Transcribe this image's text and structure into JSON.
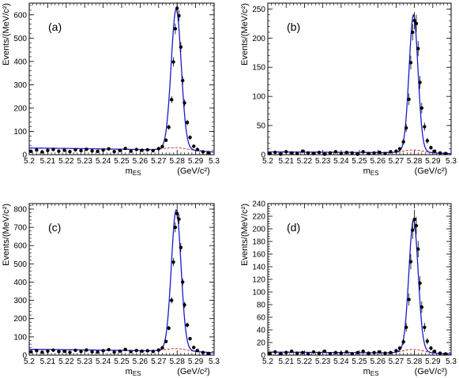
{
  "chart_data": [
    {
      "type": "scatter",
      "tag": "(a)",
      "ylabel": "Events/(MeV/c²)",
      "xlabel_var": "m",
      "xlabel_sub": "ES",
      "xunit": "(GeV/c²)",
      "xlim": [
        5.2,
        5.3
      ],
      "ylim": [
        0,
        650
      ],
      "yticks": [
        0,
        100,
        200,
        300,
        400,
        500,
        600
      ],
      "xticks": [
        5.2,
        5.21,
        5.22,
        5.23,
        5.24,
        5.25,
        5.26,
        5.27,
        5.28,
        5.29,
        5.3
      ],
      "xtick_labels": [
        "5.2",
        "5.21",
        "5.22",
        "5.23",
        "5.24",
        "5.25",
        "5.26",
        "5.27",
        "5.28",
        "5.29",
        "5.3"
      ],
      "model": {
        "peak_mean": 5.2795,
        "peak_sigma": 0.0027,
        "peak_amplitude": 595,
        "background_level": 18,
        "background_peak_amplitude": 12
      },
      "series": [
        {
          "style": "points",
          "x": [
            5.201,
            5.204,
            5.207,
            5.21,
            5.213,
            5.216,
            5.219,
            5.222,
            5.225,
            5.228,
            5.231,
            5.234,
            5.237,
            5.24,
            5.243,
            5.246,
            5.249,
            5.252,
            5.255,
            5.258,
            5.261,
            5.264,
            5.267,
            5.27,
            5.272,
            5.274,
            5.2755,
            5.277,
            5.278,
            5.279,
            5.28,
            5.281,
            5.282,
            5.283,
            5.284,
            5.2855,
            5.287,
            5.289,
            5.291,
            5.294,
            5.297
          ],
          "y": [
            14,
            20,
            12,
            18,
            22,
            15,
            19,
            13,
            21,
            17,
            23,
            16,
            14,
            20,
            25,
            13,
            18,
            27,
            15,
            22,
            19,
            21,
            17,
            26,
            35,
            62,
            118,
            236,
            398,
            540,
            628,
            596,
            462,
            318,
            222,
            138,
            74,
            36,
            22,
            12,
            8
          ],
          "yerr": [
            4,
            5,
            4,
            4,
            5,
            4,
            4,
            4,
            5,
            4,
            5,
            4,
            4,
            5,
            5,
            4,
            4,
            5,
            4,
            5,
            4,
            5,
            4,
            5,
            6,
            8,
            11,
            15,
            20,
            23,
            25,
            24,
            21,
            18,
            15,
            12,
            9,
            6,
            5,
            4,
            3
          ]
        }
      ]
    },
    {
      "type": "scatter",
      "tag": "(b)",
      "ylabel": "Events/(MeV/c²)",
      "xlabel_var": "m",
      "xlabel_sub": "ES",
      "xunit": "(GeV/c²)",
      "xlim": [
        5.2,
        5.3
      ],
      "ylim": [
        0,
        260
      ],
      "yticks": [
        0,
        50,
        100,
        150,
        200,
        250
      ],
      "xticks": [
        5.2,
        5.21,
        5.22,
        5.23,
        5.24,
        5.25,
        5.26,
        5.27,
        5.28,
        5.29,
        5.3
      ],
      "xtick_labels": [
        "5.2",
        "5.21",
        "5.22",
        "5.23",
        "5.24",
        "5.25",
        "5.26",
        "5.27",
        "5.28",
        "5.29",
        "5.3"
      ],
      "model": {
        "peak_mean": 5.2795,
        "peak_sigma": 0.0024,
        "peak_amplitude": 232,
        "background_level": 3,
        "background_peak_amplitude": 5
      },
      "series": [
        {
          "style": "points",
          "x": [
            5.201,
            5.204,
            5.207,
            5.21,
            5.213,
            5.216,
            5.219,
            5.222,
            5.225,
            5.228,
            5.231,
            5.234,
            5.237,
            5.24,
            5.243,
            5.246,
            5.249,
            5.252,
            5.255,
            5.258,
            5.261,
            5.264,
            5.267,
            5.27,
            5.272,
            5.274,
            5.2755,
            5.277,
            5.278,
            5.279,
            5.28,
            5.281,
            5.282,
            5.283,
            5.284,
            5.2855,
            5.287,
            5.289,
            5.291,
            5.294,
            5.297
          ],
          "y": [
            2,
            4,
            1,
            5,
            3,
            2,
            6,
            3,
            2,
            4,
            1,
            3,
            5,
            2,
            4,
            3,
            1,
            5,
            2,
            3,
            4,
            2,
            5,
            6,
            10,
            22,
            46,
            95,
            158,
            210,
            230,
            225,
            182,
            124,
            80,
            48,
            24,
            12,
            6,
            3,
            2
          ],
          "yerr": [
            1.5,
            2,
            1,
            2,
            2,
            1.5,
            2.5,
            2,
            1.5,
            2,
            1,
            2,
            2,
            1.5,
            2,
            2,
            1,
            2,
            1.5,
            2,
            2,
            1.5,
            2,
            2.5,
            3,
            5,
            7,
            10,
            12,
            14,
            15,
            15,
            13,
            11,
            9,
            7,
            5,
            3.5,
            2.5,
            2,
            1.5
          ]
        }
      ]
    },
    {
      "type": "scatter",
      "tag": "(c)",
      "ylabel": "Events/(MeV/c²)",
      "xlabel_var": "m",
      "xlabel_sub": "ES",
      "xunit": "(GeV/c²)",
      "xlim": [
        5.2,
        5.3
      ],
      "ylim": [
        0,
        830
      ],
      "yticks": [
        0,
        100,
        200,
        300,
        400,
        500,
        600,
        700,
        800
      ],
      "xticks": [
        5.2,
        5.21,
        5.22,
        5.23,
        5.24,
        5.25,
        5.26,
        5.27,
        5.28,
        5.29,
        5.3
      ],
      "xtick_labels": [
        "5.2",
        "5.21",
        "5.22",
        "5.23",
        "5.24",
        "5.25",
        "5.26",
        "5.27",
        "5.28",
        "5.29",
        "5.3"
      ],
      "model": {
        "peak_mean": 5.2795,
        "peak_sigma": 0.0026,
        "peak_amplitude": 760,
        "background_level": 20,
        "background_peak_amplitude": 15
      },
      "series": [
        {
          "style": "points",
          "x": [
            5.201,
            5.204,
            5.207,
            5.21,
            5.213,
            5.216,
            5.219,
            5.222,
            5.225,
            5.228,
            5.231,
            5.234,
            5.237,
            5.24,
            5.243,
            5.246,
            5.249,
            5.252,
            5.255,
            5.258,
            5.261,
            5.264,
            5.267,
            5.27,
            5.272,
            5.274,
            5.2755,
            5.277,
            5.278,
            5.279,
            5.28,
            5.281,
            5.282,
            5.283,
            5.284,
            5.2855,
            5.287,
            5.289,
            5.291,
            5.294,
            5.297
          ],
          "y": [
            18,
            24,
            16,
            22,
            27,
            19,
            21,
            15,
            26,
            20,
            28,
            18,
            17,
            24,
            30,
            16,
            22,
            31,
            19,
            25,
            22,
            24,
            20,
            28,
            40,
            75,
            148,
            300,
            510,
            700,
            775,
            745,
            590,
            400,
            275,
            165,
            90,
            42,
            25,
            14,
            9
          ],
          "yerr": [
            4,
            5,
            4,
            5,
            5,
            4,
            5,
            4,
            5,
            4,
            5,
            4,
            4,
            5,
            5,
            4,
            5,
            6,
            4,
            5,
            5,
            5,
            4,
            5,
            6,
            9,
            12,
            17,
            23,
            27,
            28,
            27,
            24,
            20,
            17,
            13,
            10,
            7,
            5,
            4,
            3
          ]
        }
      ]
    },
    {
      "type": "scatter",
      "tag": "(d)",
      "ylabel": "Events/(MeV/c²)",
      "xlabel_var": "m",
      "xlabel_sub": "ES",
      "xunit": "(GeV/c²)",
      "xlim": [
        5.2,
        5.3
      ],
      "ylim": [
        0,
        240
      ],
      "yticks": [
        0,
        20,
        40,
        60,
        80,
        100,
        120,
        140,
        160,
        180,
        200,
        220,
        240
      ],
      "xticks": [
        5.2,
        5.21,
        5.22,
        5.23,
        5.24,
        5.25,
        5.26,
        5.27,
        5.28,
        5.29,
        5.3
      ],
      "xtick_labels": [
        "5.2",
        "5.21",
        "5.22",
        "5.23",
        "5.24",
        "5.25",
        "5.26",
        "5.27",
        "5.28",
        "5.29",
        "5.3"
      ],
      "model": {
        "peak_mean": 5.2795,
        "peak_sigma": 0.0025,
        "peak_amplitude": 205,
        "background_level": 3,
        "background_peak_amplitude": 6
      },
      "series": [
        {
          "style": "points",
          "x": [
            5.201,
            5.204,
            5.207,
            5.21,
            5.213,
            5.216,
            5.219,
            5.222,
            5.225,
            5.228,
            5.231,
            5.234,
            5.237,
            5.24,
            5.243,
            5.246,
            5.249,
            5.252,
            5.255,
            5.258,
            5.261,
            5.264,
            5.267,
            5.27,
            5.272,
            5.274,
            5.2755,
            5.277,
            5.278,
            5.279,
            5.28,
            5.281,
            5.282,
            5.283,
            5.284,
            5.2855,
            5.287,
            5.289,
            5.291,
            5.294,
            5.297
          ],
          "y": [
            3,
            5,
            2,
            4,
            6,
            3,
            4,
            2,
            5,
            3,
            6,
            2,
            4,
            3,
            5,
            2,
            4,
            6,
            3,
            4,
            5,
            3,
            4,
            7,
            11,
            21,
            44,
            88,
            148,
            198,
            215,
            205,
            168,
            114,
            76,
            44,
            22,
            11,
            6,
            3,
            2
          ],
          "yerr": [
            1.5,
            2,
            1.5,
            2,
            2.5,
            1.5,
            2,
            1.5,
            2,
            1.5,
            2.5,
            1.5,
            2,
            1.5,
            2,
            1.5,
            2,
            2.5,
            1.5,
            2,
            2,
            1.5,
            2,
            2.5,
            3,
            4.5,
            7,
            9.5,
            12,
            14,
            15,
            14,
            13,
            11,
            9,
            7,
            5,
            3.5,
            2.5,
            2,
            1.5
          ]
        }
      ]
    }
  ]
}
